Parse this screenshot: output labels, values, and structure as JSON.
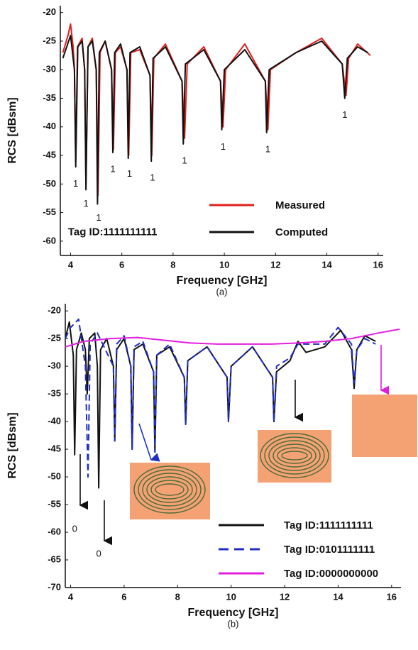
{
  "chart_data": [
    {
      "type": "line",
      "caption": "(a)",
      "xlabel": "Frequency [GHz]",
      "ylabel": "RCS [dBsm]",
      "xlim": [
        3.6,
        16.2
      ],
      "xticks": [
        4,
        6,
        8,
        10,
        12,
        14,
        16
      ],
      "ylim": [
        -62.5,
        -18.8
      ],
      "yticks": [
        -20,
        -25,
        -30,
        -35,
        -40,
        -45,
        -50,
        -55,
        -60
      ],
      "legend": "lower right",
      "series": [
        {
          "name": "Measured",
          "color": "#e0201b",
          "x": [
            3.7,
            3.9,
            4.0,
            4.1,
            4.15,
            4.2,
            4.27,
            4.45,
            4.55,
            4.6,
            4.68,
            4.85,
            5.0,
            5.07,
            5.15,
            5.35,
            5.6,
            5.67,
            5.75,
            5.95,
            6.2,
            6.27,
            6.35,
            6.7,
            7.1,
            7.17,
            7.25,
            7.7,
            8.35,
            8.45,
            8.55,
            9.2,
            9.85,
            9.95,
            10.05,
            10.8,
            11.6,
            11.7,
            11.8,
            12.8,
            13.8,
            14.6,
            14.75,
            14.85,
            15.2,
            15.7
          ],
          "values": [
            -27,
            -24,
            -22,
            -26,
            -30,
            -46,
            -26,
            -24.5,
            -30,
            -50,
            -26,
            -24.5,
            -30,
            -52,
            -27,
            -25,
            -30,
            -44,
            -27,
            -26,
            -30,
            -45,
            -27,
            -26.5,
            -31,
            -45,
            -28,
            -25.5,
            -32,
            -42,
            -29,
            -26,
            -32,
            -40,
            -30,
            -25.5,
            -32,
            -40.5,
            -30,
            -27,
            -24.5,
            -29,
            -34.5,
            -28,
            -25.5,
            -27.5
          ]
        },
        {
          "name": "Computed",
          "color": "#111111",
          "x": [
            3.7,
            4.0,
            4.15,
            4.2,
            4.28,
            4.45,
            4.55,
            4.6,
            4.68,
            4.85,
            5.0,
            5.05,
            5.12,
            5.35,
            5.6,
            5.65,
            5.72,
            5.95,
            6.2,
            6.25,
            6.32,
            6.7,
            7.1,
            7.15,
            7.22,
            7.7,
            8.35,
            8.4,
            8.48,
            9.2,
            9.85,
            9.9,
            10.0,
            10.8,
            11.6,
            11.65,
            11.75,
            12.8,
            13.8,
            14.6,
            14.7,
            14.8,
            15.2,
            15.6
          ],
          "values": [
            -28,
            -24,
            -30,
            -47,
            -26,
            -25,
            -30,
            -51,
            -26,
            -25,
            -30,
            -53.5,
            -27,
            -25,
            -30,
            -44.5,
            -27,
            -25.5,
            -30,
            -45.5,
            -27,
            -26,
            -31,
            -46,
            -28,
            -26,
            -32,
            -43,
            -29,
            -26.5,
            -32,
            -40.5,
            -30,
            -26.5,
            -32,
            -41,
            -30,
            -27,
            -25,
            -29,
            -35,
            -28,
            -26,
            -27
          ]
        }
      ],
      "annotations": [
        {
          "text": "1",
          "x": 4.2,
          "y": -50
        },
        {
          "text": "1",
          "x": 4.6,
          "y": -53.5
        },
        {
          "text": "1",
          "x": 5.1,
          "y": -56
        },
        {
          "text": "1",
          "x": 5.65,
          "y": -47.5
        },
        {
          "text": "1",
          "x": 6.3,
          "y": -48.3
        },
        {
          "text": "1",
          "x": 7.2,
          "y": -49
        },
        {
          "text": "1",
          "x": 8.45,
          "y": -46
        },
        {
          "text": "1",
          "x": 9.95,
          "y": -43.6
        },
        {
          "text": "1",
          "x": 11.7,
          "y": -44
        },
        {
          "text": "1",
          "x": 14.7,
          "y": -38
        },
        {
          "text": "Tag ID:1111111111",
          "x": 3.9,
          "y": -58.5
        }
      ]
    },
    {
      "type": "line",
      "caption": "(b)",
      "xlabel": "Frequency [GHz]",
      "ylabel": "RCS [dBsm]",
      "xlim": [
        3.8,
        16.35
      ],
      "xticks": [
        4,
        6,
        8,
        10,
        12,
        14,
        16
      ],
      "ylim": [
        -70,
        -18.7
      ],
      "yticks": [
        -20,
        -25,
        -30,
        -35,
        -40,
        -45,
        -50,
        -55,
        -60,
        -65,
        -70
      ],
      "legend": "lower right",
      "series": [
        {
          "name": "Tag ID:1111111111",
          "color": "#111111",
          "dash": "solid",
          "x": [
            3.8,
            3.95,
            4.1,
            4.15,
            4.22,
            4.4,
            4.55,
            4.62,
            4.7,
            4.9,
            5.0,
            5.05,
            5.12,
            5.35,
            5.6,
            5.65,
            5.72,
            6.0,
            6.25,
            6.3,
            6.37,
            6.7,
            7.1,
            7.15,
            7.22,
            7.7,
            8.25,
            8.3,
            8.38,
            9.1,
            9.85,
            9.9,
            10.0,
            10.8,
            11.55,
            11.6,
            11.7,
            12.2,
            12.5,
            12.8,
            13.5,
            14.1,
            14.5,
            14.6,
            14.7,
            15.0,
            15.4
          ],
          "values": [
            -25,
            -22,
            -28,
            -46,
            -27,
            -24,
            -27,
            -35,
            -25,
            -24,
            -30,
            -52,
            -27,
            -25,
            -30,
            -43.5,
            -27,
            -25,
            -30,
            -45,
            -27,
            -26,
            -31,
            -45.5,
            -28,
            -26.5,
            -32,
            -40.5,
            -29,
            -26.5,
            -32,
            -40,
            -30,
            -26.5,
            -32,
            -40,
            -31,
            -29,
            -25.5,
            -27.5,
            -26.5,
            -23.5,
            -27,
            -34,
            -27,
            -24.5,
            -25.5
          ]
        },
        {
          "name": "Tag ID:0101111111",
          "color": "#1f2fc4",
          "dash": "dashed",
          "x": [
            3.8,
            4.0,
            4.3,
            4.55,
            4.65,
            4.73,
            5.0,
            5.6,
            5.65,
            5.72,
            6.0,
            6.25,
            6.3,
            6.37,
            6.7,
            7.1,
            7.15,
            7.22,
            7.7,
            8.25,
            8.3,
            8.38,
            9.1,
            9.85,
            9.9,
            10.0,
            10.8,
            11.55,
            11.6,
            11.7,
            12.2,
            12.5,
            13.5,
            14.0,
            14.5,
            14.6,
            14.7,
            15.0,
            15.4
          ],
          "values": [
            -25,
            -23,
            -21.5,
            -30,
            -50,
            -26,
            -24,
            -30,
            -43.5,
            -26,
            -24.5,
            -30,
            -45,
            -26.5,
            -25.5,
            -31,
            -45.5,
            -28,
            -26,
            -32,
            -40.5,
            -29,
            -26.5,
            -32,
            -40,
            -30,
            -26.5,
            -32,
            -40,
            -30,
            -28.5,
            -26,
            -26,
            -23,
            -26,
            -33,
            -27,
            -25,
            -26
          ]
        },
        {
          "name": "Tag ID:0000000000",
          "color": "#e21ee0",
          "dash": "solid",
          "x": [
            3.8,
            4.5,
            5.5,
            6.5,
            7.5,
            8.5,
            9.5,
            10.5,
            11.5,
            12.5,
            13.5,
            14.5,
            15.5,
            16.3
          ],
          "values": [
            -26.5,
            -25.5,
            -25,
            -24.8,
            -25.3,
            -25.8,
            -26,
            -26,
            -26,
            -25.8,
            -25.5,
            -25,
            -24,
            -23.3
          ]
        }
      ],
      "annotations": [
        {
          "text": "0",
          "x": 4.15,
          "y": -59.5
        },
        {
          "text": "0",
          "x": 5.05,
          "y": -64
        }
      ]
    }
  ]
}
